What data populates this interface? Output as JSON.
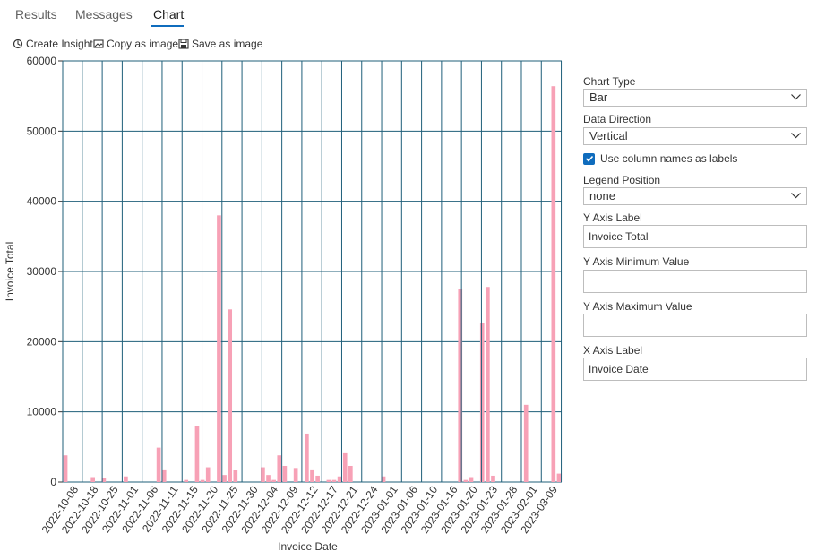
{
  "tabs": [
    {
      "label": "Results",
      "active": false
    },
    {
      "label": "Messages",
      "active": false
    },
    {
      "label": "Chart",
      "active": true
    }
  ],
  "toolbar": {
    "create_insight": "Create Insight",
    "copy_as_image": "Copy as image",
    "save_as_image": "Save as image"
  },
  "options": {
    "chart_type_label": "Chart Type",
    "chart_type_value": "Bar",
    "data_direction_label": "Data Direction",
    "data_direction_value": "Vertical",
    "use_column_names_label": "Use column names as labels",
    "use_column_names_checked": true,
    "legend_position_label": "Legend Position",
    "legend_position_value": "none",
    "y_axis_label_label": "Y Axis Label",
    "y_axis_label_value": "Invoice Total",
    "y_axis_min_label": "Y Axis Minimum Value",
    "y_axis_min_value": "",
    "y_axis_max_label": "Y Axis Maximum Value",
    "y_axis_max_value": "",
    "x_axis_label_label": "X Axis Label",
    "x_axis_label_value": "Invoice Date"
  },
  "colors": {
    "bar": "#f7a1b6",
    "grid": "#1f5f7a",
    "accent": "#0f6cbd"
  },
  "chart_data": {
    "type": "bar",
    "title": "",
    "xlabel": "Invoice Date",
    "ylabel": "Invoice Total",
    "ylim": [
      0,
      60000
    ],
    "y_ticks": [
      0,
      10000,
      20000,
      30000,
      40000,
      50000,
      60000
    ],
    "grid": true,
    "legend": "none",
    "x_tick_labels": [
      "2022-10-08",
      "2022-10-18",
      "2022-10-25",
      "2022-11-01",
      "2022-11-06",
      "2022-11-11",
      "2022-11-15",
      "2022-11-20",
      "2022-11-25",
      "2022-11-30",
      "2022-12-04",
      "2022-12-09",
      "2022-12-12",
      "2022-12-17",
      "2022-12-21",
      "2022-12-24",
      "2023-01-01",
      "2023-01-06",
      "2023-01-10",
      "2023-01-16",
      "2023-01-20",
      "2023-01-23",
      "2023-01-28",
      "2023-02-01",
      "2023-03-09"
    ],
    "values": [
      3800,
      0,
      0,
      0,
      0,
      700,
      0,
      600,
      0,
      0,
      0,
      800,
      0,
      0,
      0,
      0,
      0,
      4900,
      1800,
      0,
      0,
      0,
      300,
      0,
      8000,
      300,
      2100,
      0,
      38000,
      1000,
      24600,
      1700,
      0,
      0,
      0,
      0,
      2100,
      1000,
      300,
      3800,
      2300,
      0,
      2000,
      0,
      6900,
      1800,
      900,
      0,
      300,
      300,
      800,
      4100,
      2300,
      0,
      0,
      0,
      0,
      0,
      800,
      0,
      0,
      0,
      0,
      0,
      0,
      0,
      0,
      0,
      0,
      0,
      0,
      0,
      27500,
      300,
      700,
      0,
      22600,
      27800,
      900,
      0,
      0,
      0,
      0,
      0,
      11000,
      0,
      0,
      0,
      0,
      56400,
      1200
    ]
  }
}
